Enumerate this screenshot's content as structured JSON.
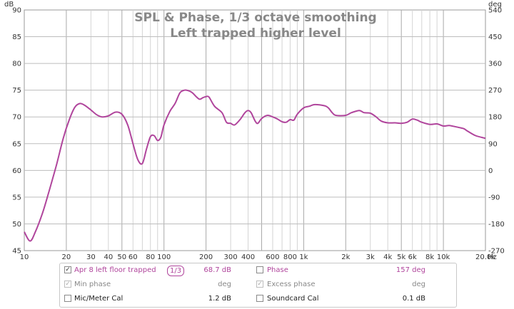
{
  "chart_data": {
    "type": "line",
    "title": "SPL & Phase, 1/3 octave smoothing",
    "subtitle": "Left trapped higher level",
    "y_left_unit": "dB",
    "y_right_unit": "deg",
    "x_unit": "Hz",
    "xlim": [
      10,
      20000
    ],
    "xscale": "log",
    "ylim": [
      45,
      90
    ],
    "y2lim": [
      -270,
      540
    ],
    "grid": true,
    "x_ticks": [
      {
        "v": 10,
        "label": "10"
      },
      {
        "v": 20,
        "label": "20"
      },
      {
        "v": 30,
        "label": "30"
      },
      {
        "v": 40,
        "label": "40"
      },
      {
        "v": 50,
        "label": "50"
      },
      {
        "v": 60,
        "label": "60"
      },
      {
        "v": 80,
        "label": "80"
      },
      {
        "v": 100,
        "label": "100"
      },
      {
        "v": 200,
        "label": "200"
      },
      {
        "v": 300,
        "label": "300"
      },
      {
        "v": 400,
        "label": "400"
      },
      {
        "v": 600,
        "label": "600"
      },
      {
        "v": 800,
        "label": "800"
      },
      {
        "v": 1000,
        "label": "1k"
      },
      {
        "v": 2000,
        "label": "2k"
      },
      {
        "v": 3000,
        "label": "3k"
      },
      {
        "v": 4000,
        "label": "4k"
      },
      {
        "v": 5000,
        "label": "5k"
      },
      {
        "v": 6000,
        "label": "6k"
      },
      {
        "v": 8000,
        "label": "8k"
      },
      {
        "v": 10000,
        "label": "10k"
      },
      {
        "v": 20000,
        "label": "20.0k"
      }
    ],
    "y_ticks": [
      45,
      50,
      55,
      60,
      65,
      70,
      75,
      80,
      85,
      90
    ],
    "y2_ticks": [
      -270,
      -180,
      -90,
      0,
      90,
      180,
      270,
      360,
      450,
      540
    ],
    "series": [
      {
        "name": "Apr 8 left floor trapped",
        "color": "#b0459c",
        "points": [
          [
            10,
            48.5
          ],
          [
            11,
            46.8
          ],
          [
            12,
            48.5
          ],
          [
            13.5,
            52
          ],
          [
            15,
            56
          ],
          [
            17,
            61
          ],
          [
            19,
            66
          ],
          [
            21,
            69.5
          ],
          [
            23,
            71.8
          ],
          [
            25,
            72.5
          ],
          [
            27,
            72.2
          ],
          [
            30,
            71.3
          ],
          [
            33,
            70.4
          ],
          [
            36,
            70.0
          ],
          [
            40,
            70.2
          ],
          [
            45,
            70.9
          ],
          [
            50,
            70.5
          ],
          [
            55,
            68.5
          ],
          [
            60,
            65.0
          ],
          [
            65,
            62.0
          ],
          [
            70,
            61.3
          ],
          [
            75,
            64.0
          ],
          [
            80,
            66.3
          ],
          [
            85,
            66.5
          ],
          [
            90,
            65.6
          ],
          [
            95,
            66.2
          ],
          [
            100,
            68.5
          ],
          [
            110,
            71.0
          ],
          [
            120,
            72.5
          ],
          [
            130,
            74.5
          ],
          [
            140,
            75.0
          ],
          [
            150,
            74.9
          ],
          [
            160,
            74.5
          ],
          [
            170,
            73.8
          ],
          [
            180,
            73.3
          ],
          [
            190,
            73.6
          ],
          [
            200,
            73.8
          ],
          [
            210,
            73.7
          ],
          [
            230,
            72.0
          ],
          [
            260,
            70.8
          ],
          [
            280,
            69.0
          ],
          [
            300,
            68.8
          ],
          [
            320,
            68.5
          ],
          [
            350,
            69.5
          ],
          [
            380,
            70.8
          ],
          [
            400,
            71.2
          ],
          [
            420,
            70.8
          ],
          [
            450,
            69.2
          ],
          [
            470,
            68.8
          ],
          [
            500,
            69.7
          ],
          [
            550,
            70.3
          ],
          [
            600,
            70.0
          ],
          [
            650,
            69.6
          ],
          [
            700,
            69.1
          ],
          [
            750,
            69.0
          ],
          [
            800,
            69.5
          ],
          [
            850,
            69.4
          ],
          [
            900,
            70.5
          ],
          [
            1000,
            71.7
          ],
          [
            1100,
            72.0
          ],
          [
            1200,
            72.3
          ],
          [
            1400,
            72.1
          ],
          [
            1500,
            71.7
          ],
          [
            1600,
            70.8
          ],
          [
            1700,
            70.3
          ],
          [
            2000,
            70.3
          ],
          [
            2200,
            70.8
          ],
          [
            2500,
            71.2
          ],
          [
            2700,
            70.8
          ],
          [
            3000,
            70.7
          ],
          [
            3300,
            70.0
          ],
          [
            3600,
            69.2
          ],
          [
            4000,
            68.9
          ],
          [
            4500,
            68.9
          ],
          [
            5000,
            68.8
          ],
          [
            5500,
            69.0
          ],
          [
            6000,
            69.6
          ],
          [
            6500,
            69.4
          ],
          [
            7000,
            69.0
          ],
          [
            8000,
            68.6
          ],
          [
            9000,
            68.7
          ],
          [
            10000,
            68.3
          ],
          [
            11000,
            68.4
          ],
          [
            12000,
            68.2
          ],
          [
            13000,
            68.0
          ],
          [
            14000,
            67.8
          ],
          [
            15000,
            67.3
          ],
          [
            17000,
            66.5
          ],
          [
            20000,
            66.0
          ]
        ]
      }
    ]
  },
  "legend": {
    "row1": {
      "name": "Apr 8 left floor trapped",
      "checked": true,
      "smoothing": "1/3",
      "value": "68.7 dB",
      "phase_label": "Phase",
      "phase_value": "157 deg"
    },
    "row2": {
      "min_phase_label": "Min phase",
      "min_phase_unit": "deg",
      "excess_phase_label": "Excess phase",
      "excess_phase_unit": "deg"
    },
    "row3": {
      "mic_label": "Mic/Meter Cal",
      "mic_value": "1.2 dB",
      "soundcard_label": "Soundcard Cal",
      "soundcard_value": "0.1 dB"
    }
  }
}
